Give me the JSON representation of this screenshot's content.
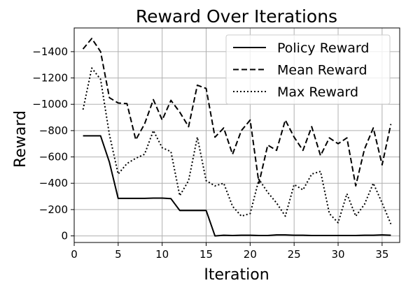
{
  "chart_data": {
    "type": "line",
    "title": "Reward Over Iterations",
    "xlabel": "Iteration",
    "ylabel": "Reward",
    "xlim": [
      0,
      37
    ],
    "ylim": [
      50,
      -1580
    ],
    "y_axis_inverted": true,
    "xticks": [
      0,
      5,
      10,
      15,
      20,
      25,
      30,
      35
    ],
    "yticks": [
      0,
      -200,
      -400,
      -600,
      -800,
      -1000,
      -1200,
      -1400
    ],
    "grid": true,
    "legend_position": "top-right",
    "x": [
      1,
      2,
      3,
      4,
      5,
      6,
      7,
      8,
      9,
      10,
      11,
      12,
      13,
      14,
      15,
      16,
      17,
      18,
      19,
      20,
      21,
      22,
      23,
      24,
      25,
      26,
      27,
      28,
      29,
      30,
      31,
      32,
      33,
      34,
      35,
      36
    ],
    "series": [
      {
        "name": "Policy Reward",
        "line_style": "solid",
        "color": "#000000",
        "values": [
          -760,
          -760,
          -760,
          -560,
          -285,
          -285,
          -285,
          -285,
          -287,
          -287,
          -283,
          -193,
          -193,
          -193,
          -193,
          0,
          -5,
          -3,
          -5,
          -5,
          -3,
          -3,
          -8,
          -8,
          -5,
          -5,
          -3,
          -3,
          -3,
          -3,
          -3,
          -3,
          -5,
          -5,
          -8,
          -5
        ]
      },
      {
        "name": "Mean Reward",
        "line_style": "dashed",
        "color": "#000000",
        "values": [
          -1420,
          -1500,
          -1400,
          -1050,
          -1010,
          -1005,
          -730,
          -850,
          -1035,
          -880,
          -1030,
          -940,
          -830,
          -1145,
          -1120,
          -750,
          -820,
          -620,
          -800,
          -880,
          -400,
          -690,
          -650,
          -880,
          -750,
          -650,
          -830,
          -610,
          -745,
          -700,
          -745,
          -380,
          -660,
          -820,
          -540,
          -850
        ]
      },
      {
        "name": "Max Reward",
        "line_style": "dotted",
        "color": "#000000",
        "values": [
          -960,
          -1275,
          -1190,
          -770,
          -470,
          -550,
          -590,
          -620,
          -800,
          -670,
          -640,
          -305,
          -420,
          -750,
          -420,
          -380,
          -400,
          -225,
          -150,
          -170,
          -430,
          -330,
          -250,
          -150,
          -390,
          -350,
          -470,
          -490,
          -170,
          -100,
          -320,
          -150,
          -240,
          -400,
          -250,
          -90
        ]
      }
    ]
  }
}
